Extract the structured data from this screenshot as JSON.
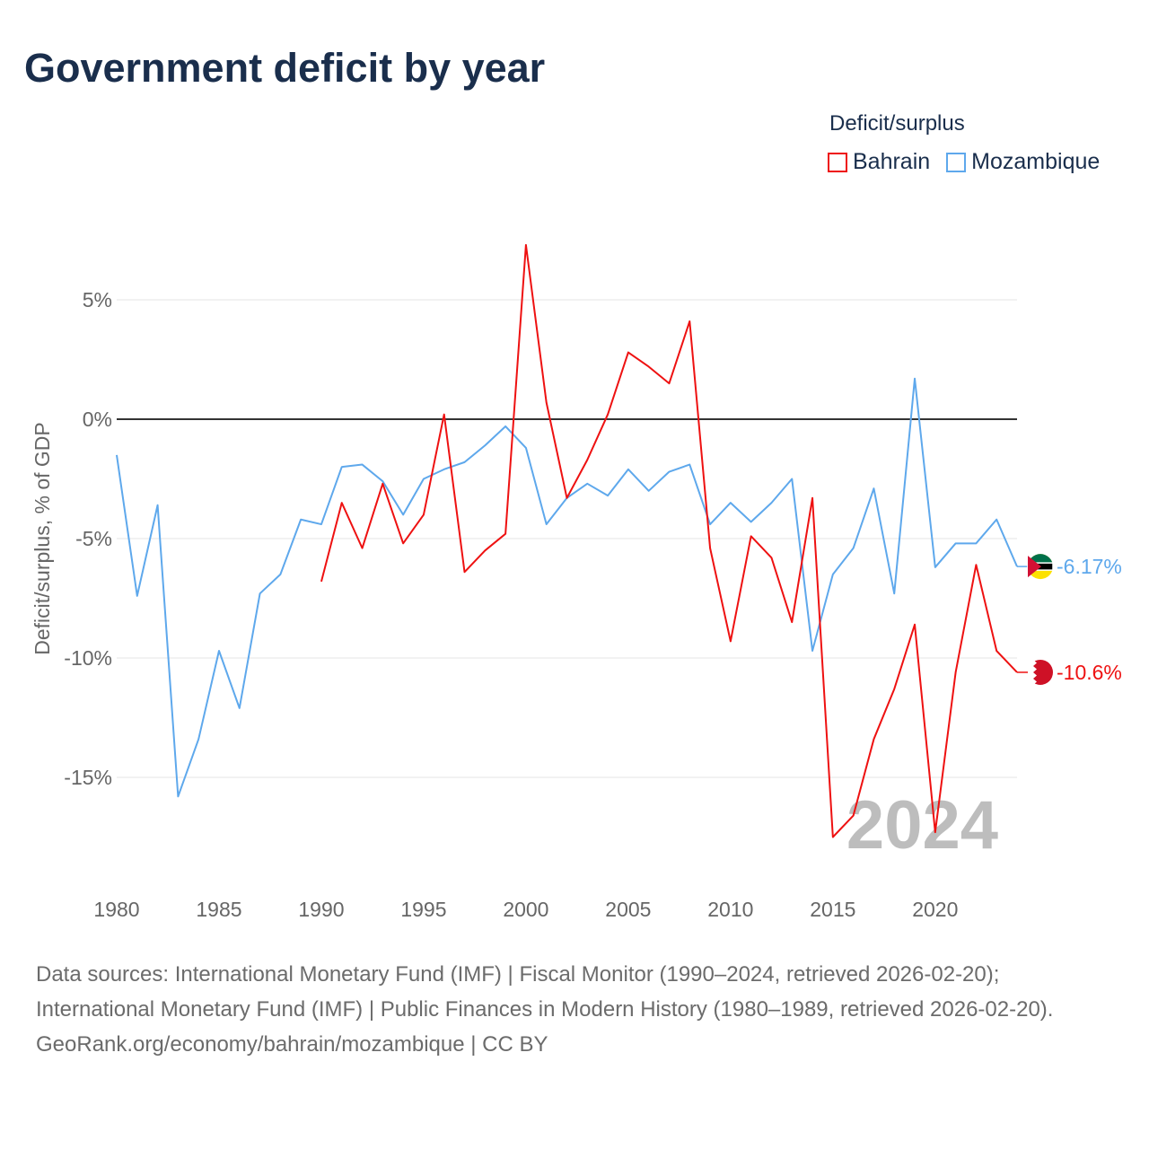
{
  "title": "Government deficit by year",
  "legend": {
    "title": "Deficit/surplus",
    "items": [
      {
        "name": "Bahrain",
        "color": "#ee1111"
      },
      {
        "name": "Mozambique",
        "color": "#5ea8ec"
      }
    ]
  },
  "sources": {
    "line1": "Data sources: International Monetary Fund (IMF) | Fiscal Monitor (1990–2024, retrieved 2026-02-20); International Monetary Fund (IMF) | Public Finances in Modern History (1980–1989, retrieved 2026-02-20).",
    "line2": "GeoRank.org/economy/bahrain/mozambique | CC BY"
  },
  "chart_data": {
    "type": "line",
    "title": "Government deficit by year",
    "ylabel": "Deficit/surplus, % of GDP",
    "xlabel": "",
    "xlim": [
      1980,
      2024
    ],
    "ylim": [
      -19.5,
      8
    ],
    "xticks": [
      1980,
      1985,
      1990,
      1995,
      2000,
      2005,
      2010,
      2015,
      2020
    ],
    "xtick_labels": [
      "1980",
      "1985",
      "1990",
      "1995",
      "2000",
      "2005",
      "2010",
      "2015",
      "2020"
    ],
    "yticks": [
      5,
      0,
      -5,
      -10,
      -15
    ],
    "ytick_labels": [
      "5%",
      "0%",
      "-5%",
      "-10%",
      "-15%"
    ],
    "watermark": "2024",
    "series": [
      {
        "name": "Mozambique",
        "color": "#5ea8ec",
        "end_label": "-6.17%",
        "start_year": 1980,
        "values": [
          -1.5,
          -7.4,
          -3.6,
          -15.8,
          -13.4,
          -9.7,
          -12.1,
          -7.3,
          -6.5,
          -4.2,
          -4.4,
          -2.0,
          -1.9,
          -2.6,
          -4.0,
          -2.5,
          -2.1,
          -1.8,
          -1.1,
          -0.3,
          -1.2,
          -4.4,
          -3.3,
          -2.7,
          -3.2,
          -2.1,
          -3.0,
          -2.2,
          -1.9,
          -4.4,
          -3.5,
          -4.3,
          -3.5,
          -2.5,
          -9.7,
          -6.5,
          -5.4,
          -2.9,
          -7.3,
          1.7,
          -6.2,
          -5.2,
          -5.2,
          -4.2,
          -6.17
        ]
      },
      {
        "name": "Bahrain",
        "color": "#ee1111",
        "end_label": "-10.6%",
        "start_year": 1990,
        "values": [
          -6.8,
          -3.5,
          -5.4,
          -2.7,
          -5.2,
          -4.0,
          0.2,
          -6.4,
          -5.5,
          -4.8,
          7.3,
          0.7,
          -3.3,
          -1.7,
          0.2,
          2.8,
          2.2,
          1.5,
          4.1,
          -5.4,
          -9.3,
          -4.9,
          -5.8,
          -8.5,
          -3.3,
          -17.5,
          -16.6,
          -13.4,
          -11.3,
          -8.6,
          -17.3,
          -10.6,
          -6.1,
          -9.7,
          -10.6
        ]
      }
    ]
  }
}
